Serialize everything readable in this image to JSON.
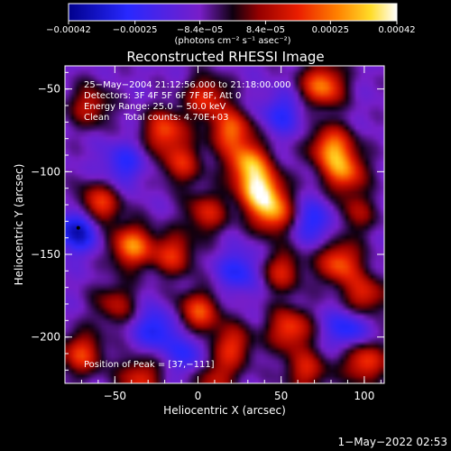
{
  "chart_data": {
    "type": "heatmap",
    "title": "Reconstructed RHESSI Image",
    "xlabel": "Heliocentric X (arcsec)",
    "ylabel": "Heliocentric Y (arcsec)",
    "xlim": [
      -80,
      112
    ],
    "ylim": [
      -228,
      -36
    ],
    "x_ticks": [
      -50,
      0,
      50,
      100
    ],
    "x_tick_labels": [
      "−50",
      "0",
      "50",
      "100"
    ],
    "y_ticks": [
      -50,
      -100,
      -150,
      -200
    ],
    "y_tick_labels": [
      "−50",
      "−100",
      "−150",
      "−200"
    ],
    "annotations": [
      "25−May−2004 21:12:56.000 to 21:18:00.000",
      "Detectors: 3F 4F 5F 6F 7F 8F, Att 0",
      "Energy Range: 25.0 − 50.0 keV",
      "Clean     Total counts: 4.70E+03"
    ],
    "peak_label": "Position of Peak = [37,−111]",
    "peak_position": [
      37,
      -111
    ],
    "colorbar": {
      "range": [
        -0.00042,
        0.00042
      ],
      "tick_values": [
        -0.00042,
        -0.00025,
        -8.4e-05,
        8.4e-05,
        0.00025,
        0.00042
      ],
      "tick_labels": [
        "−0.00042",
        "−0.00025",
        "−8.4e−05",
        "8.4e−05",
        "0.00025",
        "0.00042"
      ],
      "units": "(photons cm⁻² s⁻¹ asec⁻²)"
    },
    "blobs": [
      {
        "x": 37,
        "y": -111,
        "v": 1.0
      },
      {
        "x": 30,
        "y": -95,
        "v": 0.85
      },
      {
        "x": 45,
        "y": -125,
        "v": 0.8
      },
      {
        "x": 20,
        "y": -75,
        "v": 0.75
      },
      {
        "x": 5,
        "y": -55,
        "v": 0.6
      },
      {
        "x": 75,
        "y": -48,
        "v": 0.85
      },
      {
        "x": 80,
        "y": -85,
        "v": 0.8
      },
      {
        "x": 88,
        "y": -100,
        "v": 0.75
      },
      {
        "x": -20,
        "y": -75,
        "v": 0.7
      },
      {
        "x": -10,
        "y": -95,
        "v": 0.55
      },
      {
        "x": 5,
        "y": -125,
        "v": 0.55
      },
      {
        "x": -60,
        "y": -120,
        "v": 0.7
      },
      {
        "x": -40,
        "y": -145,
        "v": 0.85
      },
      {
        "x": -15,
        "y": -150,
        "v": 0.6
      },
      {
        "x": 50,
        "y": -160,
        "v": 0.55
      },
      {
        "x": 85,
        "y": -155,
        "v": 0.75
      },
      {
        "x": 100,
        "y": -175,
        "v": 0.6
      },
      {
        "x": -50,
        "y": -180,
        "v": 0.45
      },
      {
        "x": -70,
        "y": -210,
        "v": 0.65
      },
      {
        "x": 0,
        "y": -185,
        "v": 0.7
      },
      {
        "x": 20,
        "y": -205,
        "v": 0.6
      },
      {
        "x": 10,
        "y": -225,
        "v": 0.5
      },
      {
        "x": 55,
        "y": -195,
        "v": 0.7
      },
      {
        "x": 65,
        "y": -220,
        "v": 0.55
      },
      {
        "x": -35,
        "y": -225,
        "v": 0.6
      },
      {
        "x": -65,
        "y": -60,
        "v": 0.5
      },
      {
        "x": 100,
        "y": -215,
        "v": 0.7
      },
      {
        "x": 95,
        "y": -125,
        "v": 0.4
      },
      {
        "x": -45,
        "y": -95,
        "v": -0.4
      },
      {
        "x": -72,
        "y": -135,
        "v": -0.7
      },
      {
        "x": -25,
        "y": -195,
        "v": -0.5
      },
      {
        "x": 25,
        "y": -160,
        "v": -0.45
      },
      {
        "x": 70,
        "y": -130,
        "v": -0.45
      },
      {
        "x": 90,
        "y": -195,
        "v": -0.5
      },
      {
        "x": 50,
        "y": -65,
        "v": -0.4
      },
      {
        "x": -5,
        "y": -210,
        "v": -0.4
      }
    ]
  },
  "footer": {
    "timestamp": "1−May−2022 02:53"
  }
}
